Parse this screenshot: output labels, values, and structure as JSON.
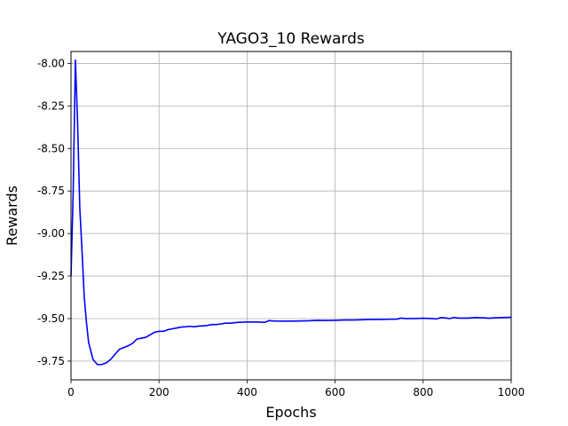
{
  "chart_data": {
    "type": "line",
    "title": "YAGO3_10 Rewards",
    "xlabel": "Epochs",
    "ylabel": "Rewards",
    "xlim": [
      0,
      1000
    ],
    "ylim": [
      -9.86,
      -7.93
    ],
    "grid": true,
    "x_ticks": [
      0,
      200,
      400,
      600,
      800,
      1000
    ],
    "y_ticks": [
      -9.75,
      -9.5,
      -9.25,
      -9.0,
      -8.75,
      -8.5,
      -8.25,
      -8.0
    ],
    "x_tick_labels": [
      "0",
      "200",
      "400",
      "600",
      "800",
      "1000"
    ],
    "y_tick_labels": [
      "-9.75",
      "-9.50",
      "-9.25",
      "-9.00",
      "-8.75",
      "-8.50",
      "-8.25",
      "-8.00"
    ],
    "series": [
      {
        "name": "Rewards",
        "color": "#0000ff",
        "x": [
          0,
          5,
          10,
          15,
          20,
          25,
          30,
          35,
          40,
          50,
          60,
          70,
          80,
          90,
          100,
          110,
          120,
          130,
          140,
          150,
          160,
          170,
          180,
          190,
          200,
          210,
          220,
          230,
          240,
          250,
          260,
          270,
          280,
          290,
          300,
          310,
          320,
          330,
          340,
          350,
          360,
          380,
          400,
          420,
          440,
          450,
          460,
          480,
          500,
          520,
          540,
          560,
          580,
          600,
          620,
          640,
          660,
          680,
          700,
          720,
          740,
          750,
          760,
          780,
          800,
          820,
          830,
          840,
          850,
          860,
          870,
          880,
          900,
          920,
          940,
          950,
          960,
          980,
          1000
        ],
        "values": [
          -9.25,
          -8.75,
          -7.98,
          -8.35,
          -8.85,
          -9.1,
          -9.37,
          -9.52,
          -9.64,
          -9.74,
          -9.77,
          -9.77,
          -9.76,
          -9.74,
          -9.71,
          -9.68,
          -9.67,
          -9.66,
          -9.645,
          -9.62,
          -9.615,
          -9.61,
          -9.595,
          -9.58,
          -9.575,
          -9.575,
          -9.565,
          -9.56,
          -9.555,
          -9.55,
          -9.548,
          -9.545,
          -9.548,
          -9.544,
          -9.543,
          -9.54,
          -9.535,
          -9.535,
          -9.532,
          -9.527,
          -9.527,
          -9.522,
          -9.52,
          -9.52,
          -9.522,
          -9.512,
          -9.514,
          -9.515,
          -9.515,
          -9.514,
          -9.513,
          -9.51,
          -9.511,
          -9.51,
          -9.508,
          -9.508,
          -9.507,
          -9.505,
          -9.505,
          -9.504,
          -9.503,
          -9.497,
          -9.5,
          -9.5,
          -9.498,
          -9.5,
          -9.502,
          -9.494,
          -9.496,
          -9.5,
          -9.493,
          -9.497,
          -9.497,
          -9.494,
          -9.496,
          -9.498,
          -9.496,
          -9.494,
          -9.492
        ]
      }
    ]
  }
}
